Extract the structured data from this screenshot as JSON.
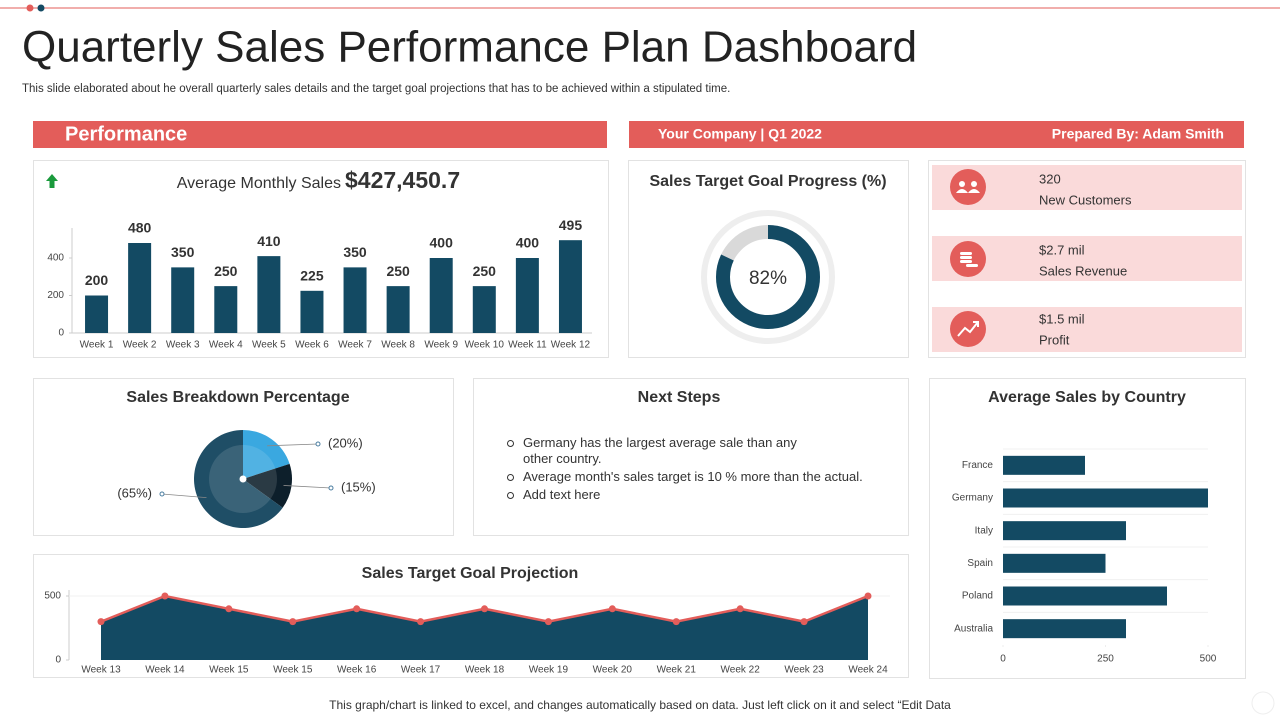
{
  "header": {
    "title": "Quarterly Sales Performance Plan Dashboard",
    "subtitle": "This slide elaborated about he overall quarterly sales details and the target goal projections that has to be achieved within a stipulated time."
  },
  "banner": {
    "performance": "Performance",
    "company": "Your Company | Q1 2022",
    "prepared": "Prepared By: Adam Smith"
  },
  "kpis": [
    {
      "value": "320",
      "label": "New Customers"
    },
    {
      "value": "$2.7 mil",
      "label": "Sales Revenue"
    },
    {
      "value": "$1.5 mil",
      "label": "Profit"
    }
  ],
  "next_steps": {
    "title": "Next Steps",
    "items": [
      "Germany has the largest  average  sale than any other country.",
      "Average  month's sales target is 10 % more than the actual.",
      "Add text here"
    ]
  },
  "footer": "This graph/chart is linked to excel, and changes automatically based on data. Just left click on it and select “Edit Data",
  "chart_data": [
    {
      "type": "bar",
      "title": "Average Monthly  Sales",
      "headline": "$427,450.7",
      "categories": [
        "Week 1",
        "Week 2",
        "Week 3",
        "Week 4",
        "Week 5",
        "Week 6",
        "Week 7",
        "Week 8",
        "Week 9",
        "Week 10",
        "Week 11",
        "Week 12"
      ],
      "values": [
        200,
        480,
        350,
        250,
        410,
        225,
        350,
        250,
        400,
        250,
        400,
        495
      ],
      "color": "#134a63",
      "ylim": [
        0,
        560
      ],
      "yticks": [
        0,
        200,
        400
      ]
    },
    {
      "type": "donut",
      "title": "Sales Target Goal Progress (%)",
      "values": [
        82
      ],
      "value_labels": [
        "82%"
      ],
      "color": "#134a63"
    },
    {
      "type": "pie",
      "title": "Sales Breakdown Percentage",
      "values": [
        20,
        15,
        65
      ],
      "value_labels": [
        "(20%)",
        "(15%)",
        "(65%)"
      ],
      "colors": [
        "#3aa8e0",
        "#0d1f2b",
        "#1f4e66"
      ]
    },
    {
      "type": "hbar",
      "title": "Average Sales by Country",
      "categories": [
        "France",
        "Germany",
        "Italy",
        "Spain",
        "Poland",
        "Australia"
      ],
      "values": [
        200,
        500,
        300,
        250,
        400,
        300
      ],
      "color": "#134a63",
      "xlim": [
        0,
        500
      ],
      "xticks": [
        0,
        250,
        500
      ]
    },
    {
      "type": "area",
      "title": "Sales Target Goal Projection",
      "categories": [
        "Week 13",
        "Week 14",
        "Week 15",
        "Week 15",
        "Week 16",
        "Week 17",
        "Week 18",
        "Week 19",
        "Week 20",
        "Week 21",
        "Week 22",
        "Week 23",
        "Week 24"
      ],
      "values": [
        300,
        500,
        400,
        300,
        400,
        300,
        400,
        300,
        400,
        300,
        400,
        300,
        500
      ],
      "color": "#134a63",
      "line_color": "#e35d5a",
      "ylim": [
        0,
        500
      ],
      "yticks": [
        0,
        500
      ]
    }
  ]
}
